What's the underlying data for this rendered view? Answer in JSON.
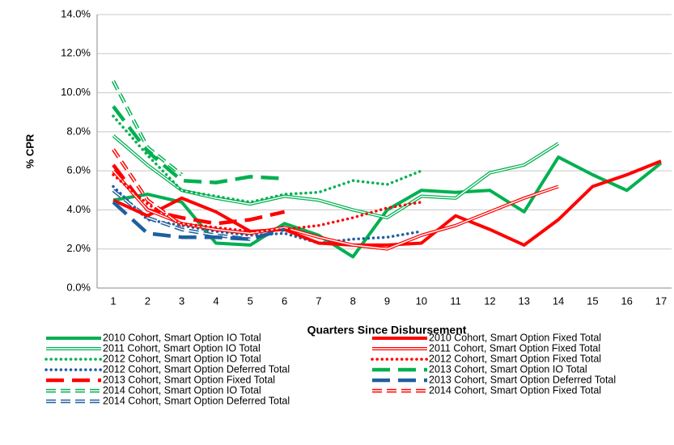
{
  "chart_data": {
    "type": "line",
    "ylabel": "% CPR",
    "xlabel": "Quarters Since Disbursement",
    "categories": [
      1,
      2,
      3,
      4,
      5,
      6,
      7,
      8,
      9,
      10,
      11,
      12,
      13,
      14,
      15,
      16,
      17
    ],
    "ylim": [
      0,
      14
    ],
    "yticks": [
      {
        "value": 0,
        "label": "0.0%"
      },
      {
        "value": 2,
        "label": "2.0%"
      },
      {
        "value": 4,
        "label": "4.0%"
      },
      {
        "value": 6,
        "label": "6.0%"
      },
      {
        "value": 8,
        "label": "8.0%"
      },
      {
        "value": 10,
        "label": "10.0%"
      },
      {
        "value": 12,
        "label": "12.0%"
      },
      {
        "value": 14,
        "label": "14.0%"
      }
    ],
    "grid": true,
    "series": [
      {
        "name": "2010 Cohort, Smart Option IO Total",
        "color": "#00b050",
        "style": "solid",
        "values": [
          4.5,
          4.8,
          4.4,
          2.3,
          2.2,
          3.3,
          2.7,
          1.6,
          4.0,
          5.0,
          4.9,
          5.0,
          3.9,
          6.7,
          5.8,
          5.0,
          6.4
        ]
      },
      {
        "name": "2011 Cohort, Smart Option IO Total",
        "color": "#00b050",
        "style": "double",
        "values": [
          7.8,
          6.3,
          5.0,
          4.6,
          4.3,
          4.7,
          4.5,
          4.0,
          3.6,
          4.7,
          4.6,
          5.9,
          6.3,
          7.4,
          null,
          null,
          null
        ]
      },
      {
        "name": "2012 Cohort, Smart Option IO Total",
        "color": "#00b050",
        "style": "dotted",
        "values": [
          8.8,
          6.8,
          5.0,
          4.7,
          4.4,
          4.8,
          4.9,
          5.5,
          5.3,
          6.0,
          null,
          null,
          null,
          null,
          null,
          null,
          null
        ]
      },
      {
        "name": "2012 Cohort, Smart Option Deferred Total",
        "color": "#1f5f9f",
        "style": "dotted",
        "values": [
          5.2,
          3.5,
          3.2,
          2.9,
          2.7,
          2.8,
          2.3,
          2.5,
          2.6,
          2.9,
          null,
          null,
          null,
          null,
          null,
          null,
          null
        ]
      },
      {
        "name": "2013 Cohort, Smart Option Fixed Total",
        "color": "#ff0000",
        "style": "dashed",
        "values": [
          6.3,
          4.0,
          3.6,
          3.3,
          3.5,
          3.9,
          null,
          null,
          null,
          null,
          null,
          null,
          null,
          null,
          null,
          null,
          null
        ]
      },
      {
        "name": "2014 Cohort, Smart Option IO Total",
        "color": "#00b050",
        "style": "double-dashed",
        "values": [
          10.6,
          7.2,
          5.8,
          null,
          null,
          null,
          null,
          null,
          null,
          null,
          null,
          null,
          null,
          null,
          null,
          null,
          null
        ]
      },
      {
        "name": "2014 Cohort, Smart Option Deferred Total",
        "color": "#1f5f9f",
        "style": "double-dashed",
        "values": [
          5.0,
          3.6,
          3.0,
          2.7,
          2.5,
          null,
          null,
          null,
          null,
          null,
          null,
          null,
          null,
          null,
          null,
          null,
          null
        ]
      },
      {
        "name": "2010 Cohort, Smart Option Fixed Total",
        "color": "#ff0000",
        "style": "solid",
        "values": [
          4.5,
          3.7,
          4.6,
          3.9,
          2.9,
          3.0,
          2.3,
          2.2,
          2.2,
          2.3,
          3.7,
          3.0,
          2.2,
          3.5,
          5.2,
          5.8,
          6.5
        ]
      },
      {
        "name": "2011 Cohort, Smart Option Fixed Total",
        "color": "#ff0000",
        "style": "double",
        "values": [
          6.0,
          4.0,
          3.3,
          3.0,
          2.8,
          3.1,
          2.6,
          2.2,
          2.0,
          2.7,
          3.2,
          3.9,
          4.6,
          5.2,
          null,
          null,
          null
        ]
      },
      {
        "name": "2012 Cohort, Smart Option Fixed Total",
        "color": "#ff0000",
        "style": "dotted",
        "values": [
          5.8,
          4.3,
          3.3,
          3.1,
          2.9,
          3.0,
          3.2,
          3.6,
          4.1,
          4.4,
          null,
          null,
          null,
          null,
          null,
          null,
          null
        ]
      },
      {
        "name": "2013 Cohort, Smart Option IO Total",
        "color": "#00b050",
        "style": "dashed",
        "values": [
          9.3,
          7.0,
          5.5,
          5.4,
          5.7,
          5.6,
          null,
          null,
          null,
          null,
          null,
          null,
          null,
          null,
          null,
          null,
          null
        ]
      },
      {
        "name": "2013 Cohort, Smart Option Deferred Total",
        "color": "#1f5f9f",
        "style": "dashed",
        "values": [
          4.4,
          2.8,
          2.6,
          2.6,
          2.5,
          3.0,
          null,
          null,
          null,
          null,
          null,
          null,
          null,
          null,
          null,
          null,
          null
        ]
      },
      {
        "name": "2014 Cohort, Smart Option Fixed Total",
        "color": "#ff0000",
        "style": "double-dashed",
        "values": [
          7.1,
          4.5,
          3.2,
          null,
          null,
          null,
          null,
          null,
          null,
          null,
          null,
          null,
          null,
          null,
          null,
          null,
          null
        ]
      }
    ]
  }
}
